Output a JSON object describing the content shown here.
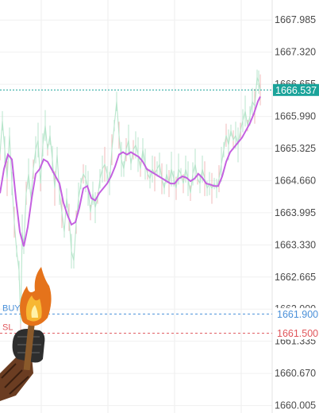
{
  "chart_data": {
    "type": "line",
    "title": "",
    "xlabel": "",
    "ylabel": "",
    "ylim": [
      1659.85,
      1668.4
    ],
    "y_ticks": [
      "1667.985",
      "1667.320",
      "1666.655",
      "1665.990",
      "1665.325",
      "1664.660",
      "1663.995",
      "1663.330",
      "1662.665",
      "1662.000",
      "1661.335",
      "1660.670",
      "1660.005"
    ],
    "grid": true,
    "current_price": {
      "value": 1666.537,
      "label": "1666.537",
      "color": "#1aa39a"
    },
    "levels": [
      {
        "name": "BUY",
        "value": 1661.9,
        "label": "1661.900",
        "color": "#4a90d9"
      },
      {
        "name": "SL",
        "value": 1661.5,
        "label": "1661.500",
        "color": "#e0565b"
      }
    ],
    "moving_average": {
      "color": "#c460e0",
      "points": [
        [
          0,
          1664.4
        ],
        [
          5,
          1664.9
        ],
        [
          10,
          1665.2
        ],
        [
          15,
          1665.1
        ],
        [
          20,
          1664.3
        ],
        [
          25,
          1663.6
        ],
        [
          30,
          1663.3
        ],
        [
          35,
          1663.7
        ],
        [
          40,
          1664.3
        ],
        [
          45,
          1664.8
        ],
        [
          50,
          1664.9
        ],
        [
          55,
          1665.1
        ],
        [
          60,
          1665.05
        ],
        [
          65,
          1664.9
        ],
        [
          70,
          1664.75
        ],
        [
          75,
          1664.6
        ],
        [
          80,
          1664.2
        ],
        [
          85,
          1663.95
        ],
        [
          90,
          1663.75
        ],
        [
          95,
          1663.8
        ],
        [
          100,
          1664.1
        ],
        [
          105,
          1664.5
        ],
        [
          110,
          1664.55
        ],
        [
          115,
          1664.3
        ],
        [
          120,
          1664.25
        ],
        [
          125,
          1664.4
        ],
        [
          130,
          1664.5
        ],
        [
          135,
          1664.6
        ],
        [
          140,
          1664.75
        ],
        [
          145,
          1664.95
        ],
        [
          150,
          1665.2
        ],
        [
          155,
          1665.25
        ],
        [
          160,
          1665.2
        ],
        [
          165,
          1665.25
        ],
        [
          170,
          1665.2
        ],
        [
          175,
          1665.15
        ],
        [
          180,
          1665.05
        ],
        [
          185,
          1664.9
        ],
        [
          190,
          1664.85
        ],
        [
          195,
          1664.8
        ],
        [
          200,
          1664.75
        ],
        [
          205,
          1664.7
        ],
        [
          210,
          1664.65
        ],
        [
          215,
          1664.6
        ],
        [
          220,
          1664.6
        ],
        [
          225,
          1664.7
        ],
        [
          230,
          1664.75
        ],
        [
          235,
          1664.72
        ],
        [
          240,
          1664.65
        ],
        [
          245,
          1664.7
        ],
        [
          250,
          1664.8
        ],
        [
          255,
          1664.72
        ],
        [
          260,
          1664.6
        ],
        [
          265,
          1664.58
        ],
        [
          270,
          1664.55
        ],
        [
          275,
          1664.55
        ],
        [
          280,
          1664.75
        ],
        [
          285,
          1665.05
        ],
        [
          290,
          1665.25
        ],
        [
          295,
          1665.35
        ],
        [
          300,
          1665.45
        ],
        [
          305,
          1665.55
        ],
        [
          310,
          1665.7
        ],
        [
          315,
          1665.85
        ],
        [
          320,
          1666.05
        ],
        [
          325,
          1666.3
        ],
        [
          328,
          1666.4
        ]
      ]
    },
    "price": {
      "color": "#b8e6cc",
      "points": [
        [
          0,
          1665.2
        ],
        [
          3,
          1665.9
        ],
        [
          6,
          1665.3
        ],
        [
          9,
          1664.7
        ],
        [
          12,
          1665.6
        ],
        [
          15,
          1664.6
        ],
        [
          18,
          1663.8
        ],
        [
          21,
          1663.2
        ],
        [
          24,
          1662.8
        ],
        [
          26,
          1661.7
        ],
        [
          28,
          1663.6
        ],
        [
          30,
          1663.3
        ],
        [
          33,
          1664.4
        ],
        [
          36,
          1664.8
        ],
        [
          39,
          1664.3
        ],
        [
          42,
          1664.9
        ],
        [
          45,
          1665.3
        ],
        [
          48,
          1665.5
        ],
        [
          51,
          1664.6
        ],
        [
          54,
          1665.4
        ],
        [
          57,
          1665.8
        ],
        [
          60,
          1665.3
        ],
        [
          63,
          1665.6
        ],
        [
          66,
          1665.1
        ],
        [
          69,
          1664.5
        ],
        [
          72,
          1665.2
        ],
        [
          75,
          1664.4
        ],
        [
          78,
          1664.0
        ],
        [
          81,
          1663.6
        ],
        [
          84,
          1664.3
        ],
        [
          87,
          1663.9
        ],
        [
          90,
          1663.2
        ],
        [
          93,
          1663.0
        ],
        [
          96,
          1663.8
        ],
        [
          99,
          1664.3
        ],
        [
          102,
          1664.6
        ],
        [
          105,
          1664.8
        ],
        [
          108,
          1664.7
        ],
        [
          111,
          1664.5
        ],
        [
          114,
          1664.0
        ],
        [
          117,
          1664.4
        ],
        [
          120,
          1664.1
        ],
        [
          123,
          1664.3
        ],
        [
          126,
          1664.7
        ],
        [
          129,
          1664.9
        ],
        [
          132,
          1665.0
        ],
        [
          135,
          1664.8
        ],
        [
          138,
          1664.6
        ],
        [
          141,
          1665.3
        ],
        [
          144,
          1665.8
        ],
        [
          147,
          1666.3
        ],
        [
          150,
          1665.6
        ],
        [
          153,
          1665.1
        ],
        [
          156,
          1664.9
        ],
        [
          159,
          1665.3
        ],
        [
          162,
          1665.5
        ],
        [
          165,
          1665.0
        ],
        [
          168,
          1665.3
        ],
        [
          171,
          1665.4
        ],
        [
          174,
          1665.2
        ],
        [
          177,
          1664.9
        ],
        [
          180,
          1665.3
        ],
        [
          183,
          1665.0
        ],
        [
          186,
          1664.8
        ],
        [
          189,
          1664.7
        ],
        [
          192,
          1664.9
        ],
        [
          195,
          1664.8
        ],
        [
          198,
          1664.9
        ],
        [
          201,
          1665.0
        ],
        [
          204,
          1664.7
        ],
        [
          207,
          1664.5
        ],
        [
          210,
          1664.8
        ],
        [
          213,
          1664.6
        ],
        [
          216,
          1664.9
        ],
        [
          219,
          1664.7
        ],
        [
          222,
          1664.5
        ],
        [
          225,
          1664.9
        ],
        [
          228,
          1664.8
        ],
        [
          231,
          1664.6
        ],
        [
          234,
          1664.9
        ],
        [
          237,
          1664.7
        ],
        [
          240,
          1664.4
        ],
        [
          243,
          1664.8
        ],
        [
          246,
          1665.0
        ],
        [
          249,
          1664.7
        ],
        [
          252,
          1664.6
        ],
        [
          255,
          1664.9
        ],
        [
          258,
          1664.7
        ],
        [
          261,
          1664.5
        ],
        [
          264,
          1664.6
        ],
        [
          267,
          1664.5
        ],
        [
          270,
          1664.6
        ],
        [
          273,
          1664.5
        ],
        [
          276,
          1664.7
        ],
        [
          279,
          1665.0
        ],
        [
          282,
          1665.3
        ],
        [
          285,
          1665.6
        ],
        [
          288,
          1665.4
        ],
        [
          291,
          1665.7
        ],
        [
          294,
          1665.5
        ],
        [
          297,
          1665.6
        ],
        [
          300,
          1665.4
        ],
        [
          303,
          1665.7
        ],
        [
          306,
          1665.9
        ],
        [
          309,
          1666.1
        ],
        [
          312,
          1665.8
        ],
        [
          315,
          1666.0
        ],
        [
          318,
          1666.3
        ],
        [
          321,
          1666.2
        ],
        [
          324,
          1666.8
        ],
        [
          326,
          1666.7
        ],
        [
          328,
          1666.54
        ]
      ]
    }
  },
  "overlay": {
    "icon": "torch-hand-icon"
  }
}
